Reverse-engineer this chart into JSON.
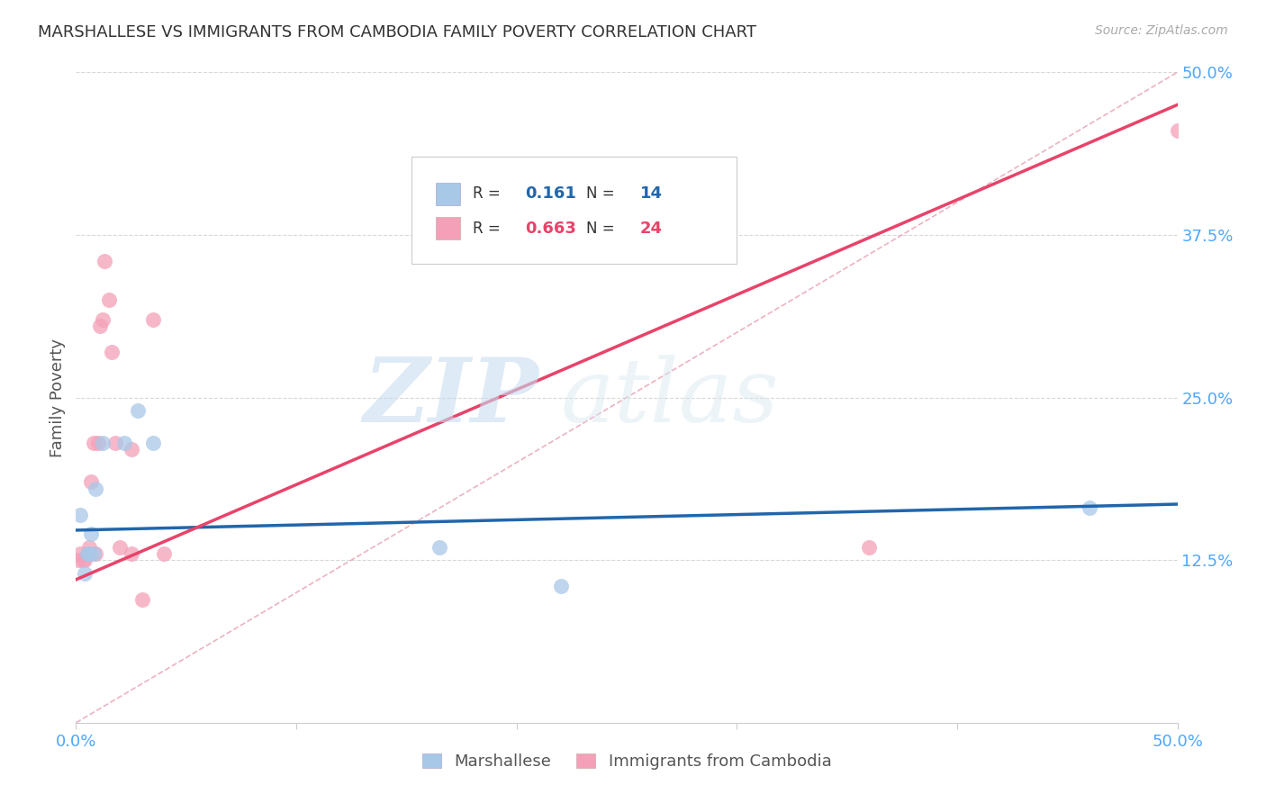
{
  "title": "MARSHALLESE VS IMMIGRANTS FROM CAMBODIA FAMILY POVERTY CORRELATION CHART",
  "source": "Source: ZipAtlas.com",
  "tick_color": "#4da6ff",
  "ylabel": "Family Poverty",
  "xmin": 0.0,
  "xmax": 0.5,
  "ymin": 0.0,
  "ymax": 0.5,
  "yticks": [
    0.125,
    0.25,
    0.375,
    0.5
  ],
  "ytick_labels": [
    "12.5%",
    "25.0%",
    "37.5%",
    "50.0%"
  ],
  "xtick_labels_shown": [
    "0.0%",
    "50.0%"
  ],
  "blue_color": "#a8c8e8",
  "pink_color": "#f4a0b8",
  "blue_line_color": "#2166ac",
  "pink_line_color": "#e8436a",
  "diag_line_color": "#e8a0b0",
  "legend_r_blue": "0.161",
  "legend_n_blue": "14",
  "legend_r_pink": "0.663",
  "legend_n_pink": "24",
  "legend_label_blue": "Marshallese",
  "legend_label_pink": "Immigrants from Cambodia",
  "watermark_zip": "ZIP",
  "watermark_atlas": "atlas",
  "marshallese_x": [
    0.002,
    0.004,
    0.005,
    0.006,
    0.007,
    0.008,
    0.009,
    0.012,
    0.022,
    0.028,
    0.035,
    0.165,
    0.22,
    0.46
  ],
  "marshallese_y": [
    0.16,
    0.115,
    0.13,
    0.13,
    0.145,
    0.13,
    0.18,
    0.215,
    0.215,
    0.24,
    0.215,
    0.135,
    0.105,
    0.165
  ],
  "cambodia_x": [
    0.001,
    0.002,
    0.003,
    0.004,
    0.005,
    0.006,
    0.007,
    0.008,
    0.009,
    0.01,
    0.011,
    0.012,
    0.013,
    0.015,
    0.016,
    0.018,
    0.02,
    0.025,
    0.03,
    0.04,
    0.035,
    0.025,
    0.36,
    0.5
  ],
  "cambodia_y": [
    0.125,
    0.13,
    0.125,
    0.125,
    0.13,
    0.135,
    0.185,
    0.215,
    0.13,
    0.215,
    0.305,
    0.31,
    0.355,
    0.325,
    0.285,
    0.215,
    0.135,
    0.13,
    0.095,
    0.13,
    0.31,
    0.21,
    0.135,
    0.455
  ],
  "blue_trendline_x": [
    0.0,
    0.5
  ],
  "blue_trendline_y": [
    0.148,
    0.168
  ],
  "pink_trendline_x": [
    0.0,
    0.5
  ],
  "pink_trendline_y": [
    0.11,
    0.475
  ]
}
